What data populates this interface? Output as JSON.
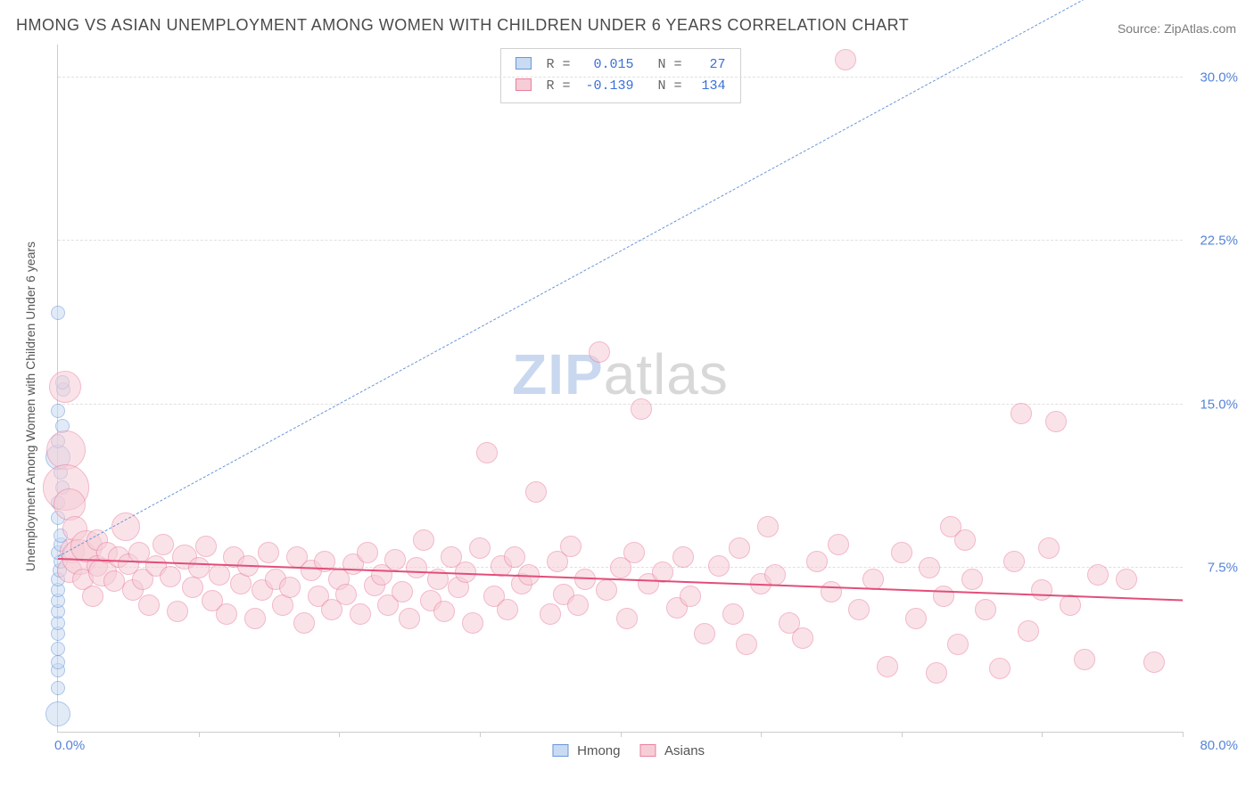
{
  "title": "HMONG VS ASIAN UNEMPLOYMENT AMONG WOMEN WITH CHILDREN UNDER 6 YEARS CORRELATION CHART",
  "source_label": "Source: ZipAtlas.com",
  "y_axis_label": "Unemployment Among Women with Children Under 6 years",
  "watermark": {
    "bold": "ZIP",
    "light": "atlas"
  },
  "chart": {
    "type": "scatter",
    "xlim": [
      0,
      80
    ],
    "ylim": [
      0,
      31.5
    ],
    "x_origin_label": "0.0%",
    "x_max_label": "80.0%",
    "x_ticks_at": [
      10,
      20,
      30,
      40,
      50,
      60,
      70,
      80
    ],
    "y_ticks": [
      {
        "v": 7.5,
        "label": "7.5%"
      },
      {
        "v": 15.0,
        "label": "15.0%"
      },
      {
        "v": 22.5,
        "label": "22.5%"
      },
      {
        "v": 30.0,
        "label": "30.0%"
      }
    ],
    "grid_color": "#e0e0e0",
    "axis_color": "#cccccc",
    "tick_label_color": "#5584d8",
    "background_color": "#ffffff"
  },
  "series": [
    {
      "key": "hmong",
      "label": "Hmong",
      "fill": "#c9dbf3",
      "stroke": "#6a96d8",
      "fill_opacity": 0.55,
      "R": "0.015",
      "N": "27",
      "trend": {
        "x1": 0,
        "y1": 8.0,
        "x2": 80,
        "y2": 36.0,
        "style": "dashed",
        "color": "#6a96d8",
        "width": 1
      },
      "marker_base_r": 7,
      "points": [
        {
          "x": 0.0,
          "y": 0.8,
          "r": 14
        },
        {
          "x": 0.0,
          "y": 2.0,
          "r": 8
        },
        {
          "x": 0.0,
          "y": 2.8,
          "r": 8
        },
        {
          "x": 0.0,
          "y": 3.2,
          "r": 8
        },
        {
          "x": 0.0,
          "y": 3.8,
          "r": 8
        },
        {
          "x": 0.0,
          "y": 4.5,
          "r": 8
        },
        {
          "x": 0.0,
          "y": 5.0,
          "r": 8
        },
        {
          "x": 0.0,
          "y": 5.5,
          "r": 8
        },
        {
          "x": 0.0,
          "y": 6.0,
          "r": 8
        },
        {
          "x": 0.0,
          "y": 6.5,
          "r": 8
        },
        {
          "x": 0.0,
          "y": 7.0,
          "r": 8
        },
        {
          "x": 0.1,
          "y": 7.4,
          "r": 8
        },
        {
          "x": 0.2,
          "y": 7.8,
          "r": 8
        },
        {
          "x": 0.0,
          "y": 8.2,
          "r": 8
        },
        {
          "x": 0.2,
          "y": 8.6,
          "r": 8
        },
        {
          "x": 0.2,
          "y": 9.0,
          "r": 8
        },
        {
          "x": 0.0,
          "y": 9.8,
          "r": 8
        },
        {
          "x": 0.0,
          "y": 10.5,
          "r": 8
        },
        {
          "x": 0.3,
          "y": 11.2,
          "r": 8
        },
        {
          "x": 0.2,
          "y": 11.9,
          "r": 8
        },
        {
          "x": 0.0,
          "y": 12.6,
          "r": 14
        },
        {
          "x": 0.0,
          "y": 13.3,
          "r": 8
        },
        {
          "x": 0.3,
          "y": 14.0,
          "r": 8
        },
        {
          "x": 0.0,
          "y": 14.7,
          "r": 8
        },
        {
          "x": 0.4,
          "y": 15.7,
          "r": 8
        },
        {
          "x": 0.3,
          "y": 16.0,
          "r": 8
        },
        {
          "x": 0.0,
          "y": 19.2,
          "r": 8
        }
      ]
    },
    {
      "key": "asians",
      "label": "Asians",
      "fill": "#f6cdd7",
      "stroke": "#e87f9e",
      "fill_opacity": 0.55,
      "R": "-0.139",
      "N": "134",
      "trend": {
        "x1": 0,
        "y1": 7.9,
        "x2": 80,
        "y2": 6.0,
        "style": "solid",
        "color": "#e24e7a",
        "width": 2
      },
      "marker_base_r": 10,
      "points": [
        {
          "x": 0.6,
          "y": 12.9,
          "r": 22
        },
        {
          "x": 0.6,
          "y": 11.2,
          "r": 26
        },
        {
          "x": 0.8,
          "y": 10.4,
          "r": 18
        },
        {
          "x": 0.5,
          "y": 15.8,
          "r": 18
        },
        {
          "x": 1.0,
          "y": 8.3,
          "r": 14
        },
        {
          "x": 1.2,
          "y": 9.3,
          "r": 14
        },
        {
          "x": 0.8,
          "y": 7.4,
          "r": 14
        },
        {
          "x": 1.5,
          "y": 8.0,
          "r": 20
        },
        {
          "x": 1.8,
          "y": 7.0,
          "r": 12
        },
        {
          "x": 2.0,
          "y": 8.5,
          "r": 18
        },
        {
          "x": 2.5,
          "y": 6.2,
          "r": 12
        },
        {
          "x": 2.8,
          "y": 7.6,
          "r": 12
        },
        {
          "x": 2.8,
          "y": 8.8,
          "r": 12
        },
        {
          "x": 3.2,
          "y": 7.3,
          "r": 16
        },
        {
          "x": 3.5,
          "y": 8.2,
          "r": 12
        },
        {
          "x": 4.0,
          "y": 6.9,
          "r": 12
        },
        {
          "x": 4.3,
          "y": 8.0,
          "r": 12
        },
        {
          "x": 4.8,
          "y": 9.4,
          "r": 16
        },
        {
          "x": 5.0,
          "y": 7.7,
          "r": 12
        },
        {
          "x": 5.3,
          "y": 6.5,
          "r": 12
        },
        {
          "x": 5.8,
          "y": 8.2,
          "r": 12
        },
        {
          "x": 6.0,
          "y": 7.0,
          "r": 12
        },
        {
          "x": 6.5,
          "y": 5.8,
          "r": 12
        },
        {
          "x": 7.0,
          "y": 7.6,
          "r": 12
        },
        {
          "x": 7.5,
          "y": 8.6,
          "r": 12
        },
        {
          "x": 8.0,
          "y": 7.1,
          "r": 12
        },
        {
          "x": 8.5,
          "y": 5.5,
          "r": 12
        },
        {
          "x": 9.0,
          "y": 8.0,
          "r": 14
        },
        {
          "x": 9.6,
          "y": 6.6,
          "r": 12
        },
        {
          "x": 10.0,
          "y": 7.5,
          "r": 12
        },
        {
          "x": 10.5,
          "y": 8.5,
          "r": 12
        },
        {
          "x": 11.0,
          "y": 6.0,
          "r": 12
        },
        {
          "x": 11.5,
          "y": 7.2,
          "r": 12
        },
        {
          "x": 12.0,
          "y": 5.4,
          "r": 12
        },
        {
          "x": 12.5,
          "y": 8.0,
          "r": 12
        },
        {
          "x": 13.0,
          "y": 6.8,
          "r": 12
        },
        {
          "x": 13.5,
          "y": 7.6,
          "r": 12
        },
        {
          "x": 14.0,
          "y": 5.2,
          "r": 12
        },
        {
          "x": 14.5,
          "y": 6.5,
          "r": 12
        },
        {
          "x": 15.0,
          "y": 8.2,
          "r": 12
        },
        {
          "x": 15.5,
          "y": 7.0,
          "r": 12
        },
        {
          "x": 16.0,
          "y": 5.8,
          "r": 12
        },
        {
          "x": 16.5,
          "y": 6.6,
          "r": 12
        },
        {
          "x": 17.0,
          "y": 8.0,
          "r": 12
        },
        {
          "x": 17.5,
          "y": 5.0,
          "r": 12
        },
        {
          "x": 18.0,
          "y": 7.4,
          "r": 12
        },
        {
          "x": 18.5,
          "y": 6.2,
          "r": 12
        },
        {
          "x": 19.0,
          "y": 7.8,
          "r": 12
        },
        {
          "x": 19.5,
          "y": 5.6,
          "r": 12
        },
        {
          "x": 20.0,
          "y": 7.0,
          "r": 12
        },
        {
          "x": 20.5,
          "y": 6.3,
          "r": 12
        },
        {
          "x": 21.0,
          "y": 7.7,
          "r": 12
        },
        {
          "x": 21.5,
          "y": 5.4,
          "r": 12
        },
        {
          "x": 22.0,
          "y": 8.2,
          "r": 12
        },
        {
          "x": 22.5,
          "y": 6.7,
          "r": 12
        },
        {
          "x": 23.0,
          "y": 7.2,
          "r": 12
        },
        {
          "x": 23.5,
          "y": 5.8,
          "r": 12
        },
        {
          "x": 24.0,
          "y": 7.9,
          "r": 12
        },
        {
          "x": 24.5,
          "y": 6.4,
          "r": 12
        },
        {
          "x": 25.0,
          "y": 5.2,
          "r": 12
        },
        {
          "x": 25.5,
          "y": 7.5,
          "r": 12
        },
        {
          "x": 26.0,
          "y": 8.8,
          "r": 12
        },
        {
          "x": 26.5,
          "y": 6.0,
          "r": 12
        },
        {
          "x": 27.0,
          "y": 7.0,
          "r": 12
        },
        {
          "x": 27.5,
          "y": 5.5,
          "r": 12
        },
        {
          "x": 28.0,
          "y": 8.0,
          "r": 12
        },
        {
          "x": 28.5,
          "y": 6.6,
          "r": 12
        },
        {
          "x": 29.0,
          "y": 7.3,
          "r": 12
        },
        {
          "x": 29.5,
          "y": 5.0,
          "r": 12
        },
        {
          "x": 30.0,
          "y": 8.4,
          "r": 12
        },
        {
          "x": 30.5,
          "y": 12.8,
          "r": 12
        },
        {
          "x": 31.0,
          "y": 6.2,
          "r": 12
        },
        {
          "x": 31.5,
          "y": 7.6,
          "r": 12
        },
        {
          "x": 32.0,
          "y": 5.6,
          "r": 12
        },
        {
          "x": 32.5,
          "y": 8.0,
          "r": 12
        },
        {
          "x": 33.0,
          "y": 6.8,
          "r": 12
        },
        {
          "x": 33.5,
          "y": 7.2,
          "r": 12
        },
        {
          "x": 34.0,
          "y": 11.0,
          "r": 12
        },
        {
          "x": 35.0,
          "y": 5.4,
          "r": 12
        },
        {
          "x": 35.5,
          "y": 7.8,
          "r": 12
        },
        {
          "x": 36.0,
          "y": 6.3,
          "r": 12
        },
        {
          "x": 36.5,
          "y": 8.5,
          "r": 12
        },
        {
          "x": 37.0,
          "y": 5.8,
          "r": 12
        },
        {
          "x": 37.5,
          "y": 7.0,
          "r": 12
        },
        {
          "x": 38.5,
          "y": 17.4,
          "r": 12
        },
        {
          "x": 39.0,
          "y": 6.5,
          "r": 12
        },
        {
          "x": 40.0,
          "y": 7.5,
          "r": 12
        },
        {
          "x": 40.5,
          "y": 5.2,
          "r": 12
        },
        {
          "x": 41.0,
          "y": 8.2,
          "r": 12
        },
        {
          "x": 41.5,
          "y": 14.8,
          "r": 12
        },
        {
          "x": 42.0,
          "y": 6.8,
          "r": 12
        },
        {
          "x": 43.0,
          "y": 7.3,
          "r": 12
        },
        {
          "x": 44.0,
          "y": 5.7,
          "r": 12
        },
        {
          "x": 44.5,
          "y": 8.0,
          "r": 12
        },
        {
          "x": 45.0,
          "y": 6.2,
          "r": 12
        },
        {
          "x": 46.0,
          "y": 4.5,
          "r": 12
        },
        {
          "x": 47.0,
          "y": 7.6,
          "r": 12
        },
        {
          "x": 48.0,
          "y": 5.4,
          "r": 12
        },
        {
          "x": 48.5,
          "y": 8.4,
          "r": 12
        },
        {
          "x": 49.0,
          "y": 4.0,
          "r": 12
        },
        {
          "x": 50.0,
          "y": 6.8,
          "r": 12
        },
        {
          "x": 50.5,
          "y": 9.4,
          "r": 12
        },
        {
          "x": 51.0,
          "y": 7.2,
          "r": 12
        },
        {
          "x": 52.0,
          "y": 5.0,
          "r": 12
        },
        {
          "x": 53.0,
          "y": 4.3,
          "r": 12
        },
        {
          "x": 54.0,
          "y": 7.8,
          "r": 12
        },
        {
          "x": 55.0,
          "y": 6.4,
          "r": 12
        },
        {
          "x": 55.5,
          "y": 8.6,
          "r": 12
        },
        {
          "x": 56.0,
          "y": 30.8,
          "r": 12
        },
        {
          "x": 57.0,
          "y": 5.6,
          "r": 12
        },
        {
          "x": 58.0,
          "y": 7.0,
          "r": 12
        },
        {
          "x": 59.0,
          "y": 3.0,
          "r": 12
        },
        {
          "x": 60.0,
          "y": 8.2,
          "r": 12
        },
        {
          "x": 61.0,
          "y": 5.2,
          "r": 12
        },
        {
          "x": 62.0,
          "y": 7.5,
          "r": 12
        },
        {
          "x": 62.5,
          "y": 2.7,
          "r": 12
        },
        {
          "x": 63.0,
          "y": 6.2,
          "r": 12
        },
        {
          "x": 63.5,
          "y": 9.4,
          "r": 12
        },
        {
          "x": 64.0,
          "y": 4.0,
          "r": 12
        },
        {
          "x": 64.5,
          "y": 8.8,
          "r": 12
        },
        {
          "x": 65.0,
          "y": 7.0,
          "r": 12
        },
        {
          "x": 66.0,
          "y": 5.6,
          "r": 12
        },
        {
          "x": 67.0,
          "y": 2.9,
          "r": 12
        },
        {
          "x": 68.0,
          "y": 7.8,
          "r": 12
        },
        {
          "x": 68.5,
          "y": 14.6,
          "r": 12
        },
        {
          "x": 69.0,
          "y": 4.6,
          "r": 12
        },
        {
          "x": 70.0,
          "y": 6.5,
          "r": 12
        },
        {
          "x": 70.5,
          "y": 8.4,
          "r": 12
        },
        {
          "x": 71.0,
          "y": 14.2,
          "r": 12
        },
        {
          "x": 72.0,
          "y": 5.8,
          "r": 12
        },
        {
          "x": 73.0,
          "y": 3.3,
          "r": 12
        },
        {
          "x": 74.0,
          "y": 7.2,
          "r": 12
        },
        {
          "x": 76.0,
          "y": 7.0,
          "r": 12
        },
        {
          "x": 78.0,
          "y": 3.2,
          "r": 12
        }
      ]
    }
  ],
  "stats_box": {
    "r_label": "R =",
    "n_label": "N ="
  },
  "legend": {
    "hmong_label": "Hmong",
    "asians_label": "Asians"
  }
}
